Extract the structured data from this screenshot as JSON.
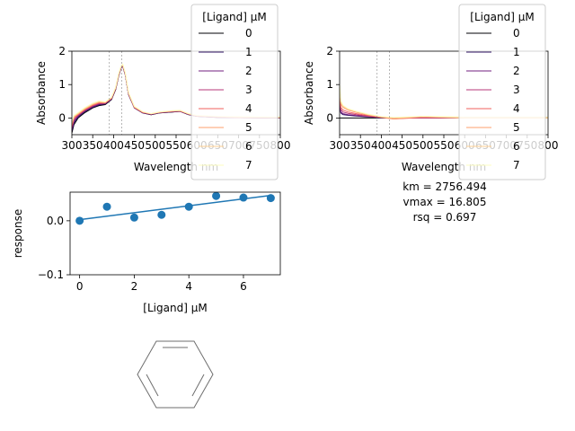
{
  "chart_data": [
    {
      "type": "line",
      "xlabel": "Wavelength nm",
      "ylabel": "Absorbance",
      "xlim": [
        300,
        800
      ],
      "ylim": [
        -0.5,
        2
      ],
      "xticks": [
        "300",
        "350",
        "400",
        "450",
        "500",
        "550",
        "600",
        "650",
        "700",
        "750",
        "800"
      ],
      "yticks": [
        "0",
        "1",
        "2"
      ],
      "reference_lines_x": [
        390,
        420
      ],
      "legend": {
        "title": "[Ligand] µM",
        "placement": "top-right, above plot",
        "entries": [
          "0",
          "1",
          "2",
          "3",
          "4",
          "5",
          "6",
          "7"
        ]
      },
      "series": [
        {
          "name": "0",
          "color": "#000004",
          "x": [
            300,
            305,
            315,
            330,
            350,
            365,
            380,
            395,
            405,
            412,
            418,
            422,
            428,
            436,
            450,
            470,
            490,
            510,
            540,
            560,
            580,
            600,
            650,
            700,
            800
          ],
          "y": [
            -0.45,
            -0.2,
            0.0,
            0.15,
            0.3,
            0.37,
            0.4,
            0.55,
            0.85,
            1.25,
            1.5,
            1.55,
            1.3,
            0.7,
            0.3,
            0.15,
            0.1,
            0.15,
            0.18,
            0.2,
            0.1,
            0.05,
            0.02,
            0.01,
            0.0
          ]
        },
        {
          "name": "1",
          "color": "#2d1160",
          "x": [
            300,
            305,
            315,
            330,
            350,
            365,
            380,
            395,
            405,
            412,
            418,
            422,
            428,
            436,
            450,
            470,
            490,
            510,
            540,
            560,
            580,
            600,
            650,
            700,
            800
          ],
          "y": [
            -0.4,
            -0.15,
            0.03,
            0.18,
            0.32,
            0.39,
            0.42,
            0.56,
            0.86,
            1.26,
            1.5,
            1.55,
            1.3,
            0.7,
            0.3,
            0.15,
            0.1,
            0.15,
            0.18,
            0.2,
            0.1,
            0.05,
            0.02,
            0.01,
            0.0
          ]
        },
        {
          "name": "2",
          "color": "#721f81",
          "x": [
            300,
            305,
            315,
            330,
            350,
            365,
            380,
            395,
            405,
            412,
            418,
            422,
            428,
            436,
            450,
            470,
            490,
            510,
            540,
            560,
            580,
            600,
            650,
            700,
            800
          ],
          "y": [
            -0.35,
            -0.1,
            0.06,
            0.2,
            0.34,
            0.41,
            0.43,
            0.57,
            0.87,
            1.27,
            1.51,
            1.56,
            1.31,
            0.71,
            0.31,
            0.16,
            0.11,
            0.16,
            0.19,
            0.2,
            0.11,
            0.05,
            0.02,
            0.01,
            0.0
          ]
        },
        {
          "name": "3",
          "color": "#b73779",
          "x": [
            300,
            305,
            315,
            330,
            350,
            365,
            380,
            395,
            405,
            412,
            418,
            422,
            428,
            436,
            450,
            470,
            490,
            510,
            540,
            560,
            580,
            600,
            650,
            700,
            800
          ],
          "y": [
            -0.3,
            -0.05,
            0.08,
            0.22,
            0.36,
            0.43,
            0.44,
            0.58,
            0.88,
            1.28,
            1.52,
            1.57,
            1.32,
            0.72,
            0.31,
            0.16,
            0.11,
            0.16,
            0.19,
            0.21,
            0.11,
            0.06,
            0.03,
            0.02,
            0.01
          ]
        },
        {
          "name": "4",
          "color": "#f1605d",
          "x": [
            300,
            305,
            315,
            330,
            350,
            365,
            380,
            395,
            405,
            412,
            418,
            422,
            428,
            436,
            450,
            470,
            490,
            510,
            540,
            560,
            580,
            600,
            650,
            700,
            800
          ],
          "y": [
            -0.25,
            0.0,
            0.1,
            0.24,
            0.38,
            0.45,
            0.45,
            0.59,
            0.89,
            1.29,
            1.53,
            1.58,
            1.33,
            0.73,
            0.32,
            0.17,
            0.12,
            0.17,
            0.2,
            0.21,
            0.12,
            0.06,
            0.03,
            0.02,
            0.01
          ]
        },
        {
          "name": "5",
          "color": "#fe9f6d",
          "x": [
            300,
            305,
            315,
            330,
            350,
            365,
            380,
            395,
            405,
            412,
            418,
            422,
            428,
            436,
            450,
            470,
            490,
            510,
            540,
            560,
            580,
            600,
            650,
            700,
            800
          ],
          "y": [
            -0.2,
            0.03,
            0.12,
            0.26,
            0.4,
            0.47,
            0.46,
            0.6,
            0.9,
            1.3,
            1.54,
            1.59,
            1.34,
            0.74,
            0.33,
            0.18,
            0.12,
            0.17,
            0.21,
            0.22,
            0.12,
            0.07,
            0.04,
            0.03,
            0.02
          ]
        },
        {
          "name": "6",
          "color": "#fecf92",
          "x": [
            300,
            305,
            315,
            330,
            350,
            365,
            380,
            395,
            405,
            412,
            418,
            422,
            428,
            436,
            450,
            470,
            490,
            510,
            540,
            560,
            580,
            600,
            650,
            700,
            800
          ],
          "y": [
            -0.15,
            0.05,
            0.14,
            0.28,
            0.42,
            0.49,
            0.47,
            0.61,
            0.91,
            1.31,
            1.55,
            1.6,
            1.35,
            0.75,
            0.34,
            0.18,
            0.13,
            0.18,
            0.21,
            0.22,
            0.13,
            0.07,
            0.04,
            0.03,
            0.02
          ]
        },
        {
          "name": "7",
          "color": "#fcfdbf",
          "x": [
            300,
            305,
            315,
            330,
            350,
            365,
            380,
            395,
            405,
            412,
            418,
            422,
            428,
            436,
            450,
            470,
            490,
            510,
            540,
            560,
            580,
            600,
            650,
            700,
            800
          ],
          "y": [
            -0.1,
            0.07,
            0.16,
            0.3,
            0.44,
            0.51,
            0.48,
            0.62,
            0.92,
            1.32,
            1.56,
            1.61,
            1.36,
            0.76,
            0.35,
            0.19,
            0.13,
            0.18,
            0.22,
            0.23,
            0.13,
            0.08,
            0.05,
            0.04,
            0.03
          ]
        }
      ]
    },
    {
      "type": "line",
      "xlabel": "Wavelength nm",
      "ylabel": "Absorbance",
      "xlim": [
        300,
        800
      ],
      "ylim": [
        -0.5,
        2
      ],
      "xticks": [
        "300",
        "350",
        "400",
        "450",
        "500",
        "550",
        "600",
        "650",
        "700",
        "750",
        "800"
      ],
      "yticks": [
        "0",
        "1",
        "2"
      ],
      "reference_lines_x": [
        390,
        420
      ],
      "legend": {
        "title": "[Ligand] µM",
        "placement": "top-right, above plot",
        "entries": [
          "0",
          "1",
          "2",
          "3",
          "4",
          "5",
          "6",
          "7"
        ]
      },
      "annotation": [
        "km = 2756.494",
        "vmax = 16.805",
        "rsq = 0.697"
      ],
      "series": [
        {
          "name": "0",
          "color": "#000004",
          "x": [
            300,
            305,
            315,
            330,
            360,
            400,
            430,
            500,
            600,
            800
          ],
          "y": [
            0.0,
            0.0,
            0.0,
            0.0,
            0.0,
            0.0,
            0.0,
            0.0,
            0.0,
            0.0
          ]
        },
        {
          "name": "1",
          "color": "#2d1160",
          "x": [
            300,
            303,
            308,
            320,
            340,
            370,
            400,
            430,
            500,
            600,
            800
          ],
          "y": [
            0.35,
            0.15,
            0.1,
            0.08,
            0.06,
            0.03,
            0.01,
            0.0,
            0.0,
            0.0,
            0.0
          ]
        },
        {
          "name": "2",
          "color": "#721f81",
          "x": [
            300,
            303,
            308,
            320,
            340,
            370,
            400,
            430,
            500,
            600,
            800
          ],
          "y": [
            0.4,
            0.18,
            0.13,
            0.1,
            0.07,
            0.04,
            0.01,
            0.0,
            0.0,
            0.0,
            0.0
          ]
        },
        {
          "name": "3",
          "color": "#b73779",
          "x": [
            300,
            303,
            308,
            320,
            340,
            370,
            400,
            430,
            500,
            600,
            800
          ],
          "y": [
            0.5,
            0.25,
            0.18,
            0.14,
            0.1,
            0.05,
            0.02,
            0.0,
            0.0,
            0.0,
            0.0
          ]
        },
        {
          "name": "4",
          "color": "#f1605d",
          "x": [
            300,
            303,
            308,
            320,
            340,
            370,
            400,
            430,
            500,
            600,
            800
          ],
          "y": [
            0.6,
            0.32,
            0.24,
            0.18,
            0.13,
            0.07,
            0.02,
            -0.03,
            0.02,
            0.0,
            0.0
          ]
        },
        {
          "name": "5",
          "color": "#fe9f6d",
          "x": [
            300,
            303,
            308,
            320,
            340,
            370,
            400,
            430,
            500,
            600,
            800
          ],
          "y": [
            0.8,
            0.42,
            0.32,
            0.24,
            0.17,
            0.09,
            0.03,
            -0.03,
            0.05,
            0.0,
            0.0
          ]
        },
        {
          "name": "6",
          "color": "#fecf92",
          "x": [
            300,
            303,
            308,
            320,
            340,
            370,
            400,
            430,
            500,
            600,
            800
          ],
          "y": [
            0.9,
            0.48,
            0.36,
            0.27,
            0.19,
            0.1,
            0.04,
            0.0,
            0.04,
            0.0,
            0.0
          ]
        },
        {
          "name": "7",
          "color": "#fcfdbf",
          "x": [
            300,
            303,
            308,
            320,
            340,
            370,
            400,
            430,
            500,
            600,
            800
          ],
          "y": [
            1.0,
            0.52,
            0.38,
            0.28,
            0.2,
            0.11,
            0.04,
            0.02,
            0.05,
            0.03,
            0.03
          ]
        }
      ]
    },
    {
      "type": "scatter",
      "xlabel": "[Ligand] µM",
      "ylabel": "response",
      "xlim": [
        -0.35,
        7.35
      ],
      "ylim": [
        -0.1,
        0.053
      ],
      "xticks": [
        "0",
        "2",
        "4",
        "6"
      ],
      "yticks": [
        "−0.1",
        "0.0"
      ],
      "point_color": "#1f77b4",
      "x": [
        0,
        1,
        2,
        3,
        4,
        5,
        6,
        7
      ],
      "y": [
        0.0,
        0.026,
        0.006,
        0.011,
        0.026,
        0.046,
        0.043,
        0.042
      ],
      "fit_line": {
        "x": [
          0,
          7
        ],
        "y": [
          0.002,
          0.047
        ]
      }
    }
  ],
  "structure": {
    "name": "benzene",
    "line_color": "#6e6e6e"
  }
}
